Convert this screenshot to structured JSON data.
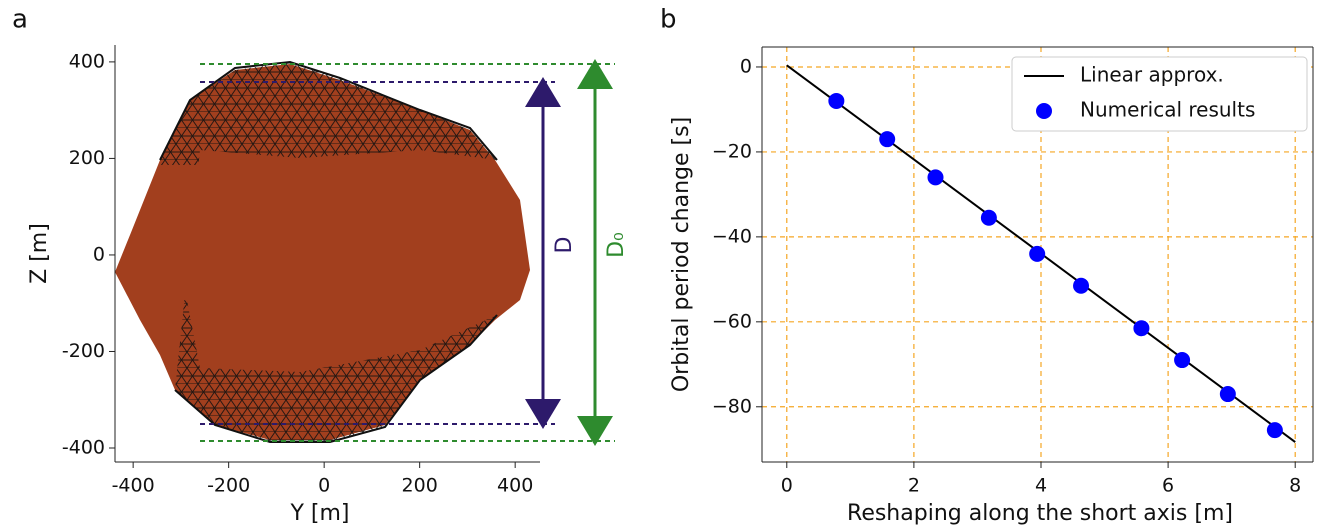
{
  "chart_data": [
    {
      "type": "image",
      "panel_label": "a",
      "xlabel": "Y [m]",
      "ylabel": "Z [m]",
      "xlim": [
        -438,
        452
      ],
      "ylim": [
        -429,
        435
      ],
      "xticks": [
        -400,
        -200,
        0,
        200,
        400
      ],
      "yticks": [
        -400,
        -200,
        0,
        200,
        400
      ],
      "annotations": [
        "D",
        "D₀"
      ],
      "grid": false
    },
    {
      "type": "line_scatter",
      "panel_label": "b",
      "xlabel": "Reshaping along the short axis [m]",
      "ylabel": "Orbital period change [s]",
      "xlim": [
        -0.39,
        8.28
      ],
      "ylim": [
        -93,
        4.7
      ],
      "xticks": [
        0,
        2,
        4,
        6,
        8
      ],
      "yticks": [
        {
          "value": -80,
          "label": "−80"
        },
        {
          "value": -60,
          "label": "−60"
        },
        {
          "value": -40,
          "label": "−40"
        },
        {
          "value": -20,
          "label": "−20"
        },
        0
      ],
      "grid": true,
      "legend": "upper right",
      "series": [
        {
          "name": "Linear approx.",
          "kind": "line",
          "color": "#000000",
          "x": [
            0,
            8
          ],
          "values": [
            0.4,
            -88.3
          ]
        },
        {
          "name": "Numerical results",
          "kind": "scatter",
          "color": "#0000ff",
          "x": [
            0.78,
            1.58,
            2.34,
            3.18,
            3.94,
            4.63,
            5.58,
            6.22,
            6.94,
            7.68
          ],
          "values": [
            -8,
            -17,
            -26,
            -35.5,
            -44,
            -51.5,
            -61.5,
            -69,
            -77,
            -85.5
          ]
        }
      ]
    }
  ]
}
